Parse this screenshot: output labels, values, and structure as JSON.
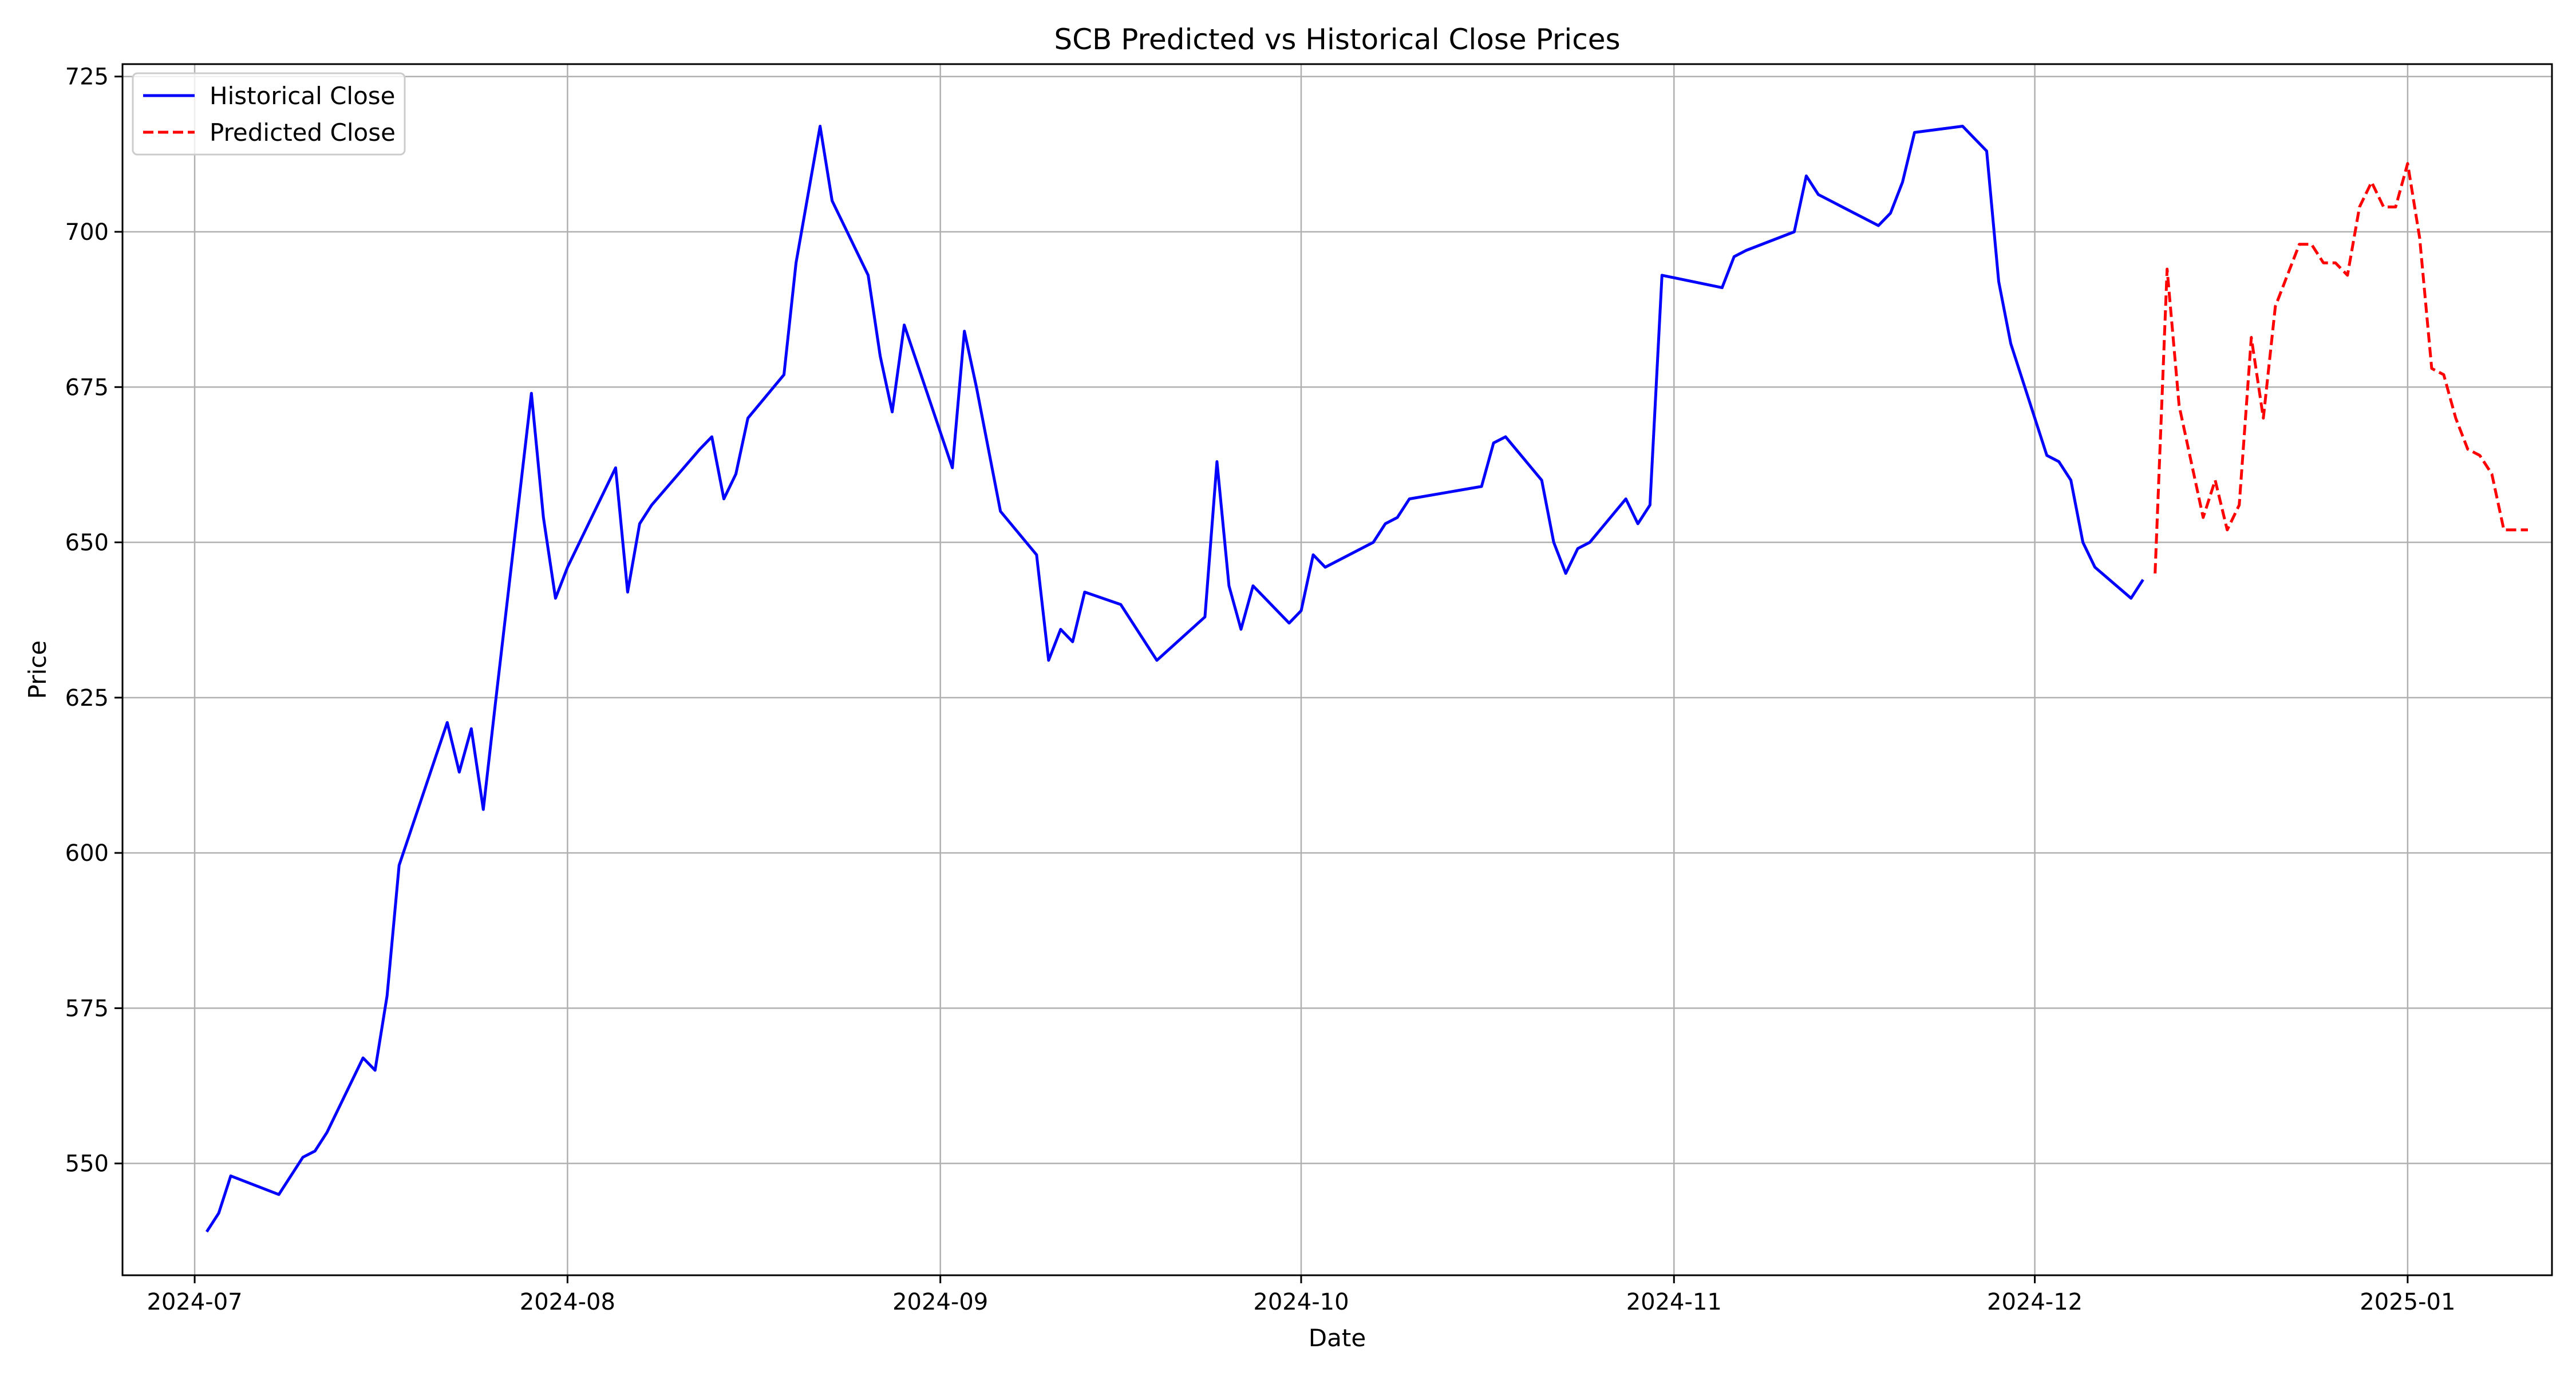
{
  "chart_data": {
    "type": "line",
    "title": "SCB Predicted vs Historical Close Prices",
    "xlabel": "Date",
    "ylabel": "Price",
    "x_type": "date",
    "xlim": [
      "2024-06-25",
      "2025-01-13"
    ],
    "ylim": [
      532,
      727
    ],
    "x_ticks": [
      "2024-07-01",
      "2024-08-01",
      "2024-09-01",
      "2024-10-01",
      "2024-11-01",
      "2024-12-01",
      "2025-01-01"
    ],
    "x_tick_labels": [
      "2024-07",
      "2024-08",
      "2024-09",
      "2024-10",
      "2024-11",
      "2024-12",
      "2025-01"
    ],
    "y_ticks": [
      550,
      575,
      600,
      625,
      650,
      675,
      700,
      725
    ],
    "grid": true,
    "legend": {
      "position": "top-left"
    },
    "series": [
      {
        "name": "Historical Close",
        "color": "#0000ff",
        "style": "solid",
        "x": [
          "2024-07-02",
          "2024-07-03",
          "2024-07-04",
          "2024-07-08",
          "2024-07-09",
          "2024-07-10",
          "2024-07-11",
          "2024-07-12",
          "2024-07-15",
          "2024-07-16",
          "2024-07-17",
          "2024-07-18",
          "2024-07-22",
          "2024-07-23",
          "2024-07-24",
          "2024-07-25",
          "2024-07-26",
          "2024-07-29",
          "2024-07-30",
          "2024-07-31",
          "2024-08-01",
          "2024-08-02",
          "2024-08-05",
          "2024-08-06",
          "2024-08-07",
          "2024-08-08",
          "2024-08-12",
          "2024-08-13",
          "2024-08-14",
          "2024-08-15",
          "2024-08-16",
          "2024-08-19",
          "2024-08-20",
          "2024-08-22",
          "2024-08-23",
          "2024-08-26",
          "2024-08-27",
          "2024-08-28",
          "2024-08-29",
          "2024-09-02",
          "2024-09-03",
          "2024-09-04",
          "2024-09-05",
          "2024-09-06",
          "2024-09-09",
          "2024-09-10",
          "2024-09-11",
          "2024-09-12",
          "2024-09-13",
          "2024-09-16",
          "2024-09-17",
          "2024-09-19",
          "2024-09-23",
          "2024-09-24",
          "2024-09-25",
          "2024-09-26",
          "2024-09-27",
          "2024-09-30",
          "2024-10-01",
          "2024-10-02",
          "2024-10-03",
          "2024-10-07",
          "2024-10-08",
          "2024-10-09",
          "2024-10-10",
          "2024-10-16",
          "2024-10-17",
          "2024-10-18",
          "2024-10-21",
          "2024-10-22",
          "2024-10-23",
          "2024-10-24",
          "2024-10-25",
          "2024-10-28",
          "2024-10-29",
          "2024-10-30",
          "2024-10-31",
          "2024-11-05",
          "2024-11-06",
          "2024-11-07",
          "2024-11-11",
          "2024-11-12",
          "2024-11-13",
          "2024-11-14",
          "2024-11-15",
          "2024-11-18",
          "2024-11-19",
          "2024-11-20",
          "2024-11-21",
          "2024-11-25",
          "2024-11-26",
          "2024-11-27",
          "2024-11-28",
          "2024-11-29",
          "2024-12-02",
          "2024-12-03",
          "2024-12-04",
          "2024-12-05",
          "2024-12-06",
          "2024-12-09",
          "2024-12-10"
        ],
        "y": [
          539,
          542,
          548,
          545,
          548,
          551,
          552,
          555,
          567,
          565,
          577,
          598,
          621,
          613,
          620,
          607,
          624,
          674,
          654,
          641,
          646,
          650,
          662,
          642,
          653,
          656,
          665,
          667,
          657,
          661,
          670,
          677,
          695,
          717,
          705,
          693,
          680,
          671,
          685,
          662,
          684,
          675,
          665,
          655,
          648,
          631,
          636,
          634,
          642,
          640,
          637,
          631,
          638,
          663,
          643,
          636,
          643,
          637,
          639,
          648,
          646,
          650,
          653,
          654,
          657,
          659,
          666,
          667,
          660,
          650,
          645,
          649,
          650,
          657,
          653,
          656,
          693,
          691,
          696,
          697,
          700,
          709,
          706,
          705,
          704,
          701,
          703,
          708,
          716,
          717,
          715,
          713,
          692,
          682,
          664,
          663,
          660,
          650,
          646,
          641,
          644
        ]
      },
      {
        "name": "Predicted Close",
        "color": "#ff0000",
        "style": "dashed",
        "x": [
          "2024-12-11",
          "2024-12-12",
          "2024-12-13",
          "2024-12-14",
          "2024-12-15",
          "2024-12-16",
          "2024-12-17",
          "2024-12-18",
          "2024-12-19",
          "2024-12-20",
          "2024-12-21",
          "2024-12-22",
          "2024-12-23",
          "2024-12-24",
          "2024-12-25",
          "2024-12-26",
          "2024-12-27",
          "2024-12-28",
          "2024-12-29",
          "2024-12-30",
          "2024-12-31",
          "2025-01-01",
          "2025-01-02",
          "2025-01-03",
          "2025-01-04",
          "2025-01-05",
          "2025-01-06",
          "2025-01-07",
          "2025-01-08",
          "2025-01-09",
          "2025-01-10",
          "2025-01-11"
        ],
        "y": [
          645,
          694,
          672,
          663,
          654,
          660,
          652,
          656,
          683,
          670,
          688,
          693,
          698,
          698,
          695,
          695,
          693,
          704,
          708,
          704,
          704,
          711,
          699,
          678,
          677,
          670,
          665,
          664,
          661,
          652,
          652,
          652
        ]
      }
    ]
  }
}
